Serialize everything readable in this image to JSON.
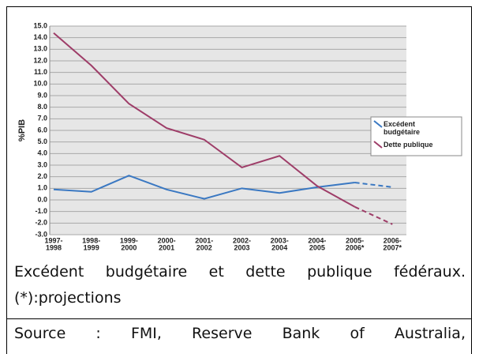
{
  "chart_data": {
    "type": "line",
    "ylabel": "%PIB",
    "categories": [
      [
        "1997-",
        "1998"
      ],
      [
        "1998-",
        "1999"
      ],
      [
        "1999-",
        "2000"
      ],
      [
        "2000-",
        "2001"
      ],
      [
        "2001-",
        "2002"
      ],
      [
        "2002-",
        "2003"
      ],
      [
        "2003-",
        "2004"
      ],
      [
        "2004-",
        "2005"
      ],
      [
        "2005-",
        "2006*"
      ],
      [
        "2006-",
        "2007*"
      ]
    ],
    "series": [
      {
        "name": "Excédent budgétaire",
        "color": "#3a78c2",
        "values": [
          0.9,
          0.7,
          2.1,
          0.9,
          0.1,
          1.0,
          0.6,
          1.1,
          1.5,
          1.1
        ],
        "dashed_from": 8
      },
      {
        "name": "Dette publique",
        "color": "#9e3d68",
        "values": [
          14.4,
          11.6,
          8.3,
          6.2,
          5.2,
          2.8,
          3.8,
          1.2,
          -0.6,
          -2.1
        ],
        "dashed_from": 8
      }
    ],
    "ylim": [
      -3,
      15
    ],
    "yticks": [
      {
        "value": 15,
        "label": "15.0"
      },
      {
        "value": 14,
        "label": "14.0"
      },
      {
        "value": 13,
        "label": "13.0"
      },
      {
        "value": 12,
        "label": "12.0"
      },
      {
        "value": 11,
        "label": "11.0"
      },
      {
        "value": 10,
        "label": "10.0"
      },
      {
        "value": 9,
        "label": "9.0"
      },
      {
        "value": 8,
        "label": "8.0"
      },
      {
        "value": 7,
        "label": "7.0"
      },
      {
        "value": 6,
        "label": "6.0"
      },
      {
        "value": 5,
        "label": "5.0"
      },
      {
        "value": 4,
        "label": "4.0"
      },
      {
        "value": 3,
        "label": "3.0"
      },
      {
        "value": 2,
        "label": "2.0"
      },
      {
        "value": 1,
        "label": "1.0"
      },
      {
        "value": 0,
        "label": "0.0"
      },
      {
        "value": -1,
        "label": "-1.0"
      },
      {
        "value": -2,
        "label": "-2.0"
      },
      {
        "value": -3,
        "label": "-3.0"
      }
    ],
    "grid": true,
    "legend": "right"
  },
  "caption": {
    "text": "Excédent budgétaire et dette publique fédéraux. (*):projections",
    "source": "Source : FMI, Reserve Bank of Australia,"
  }
}
